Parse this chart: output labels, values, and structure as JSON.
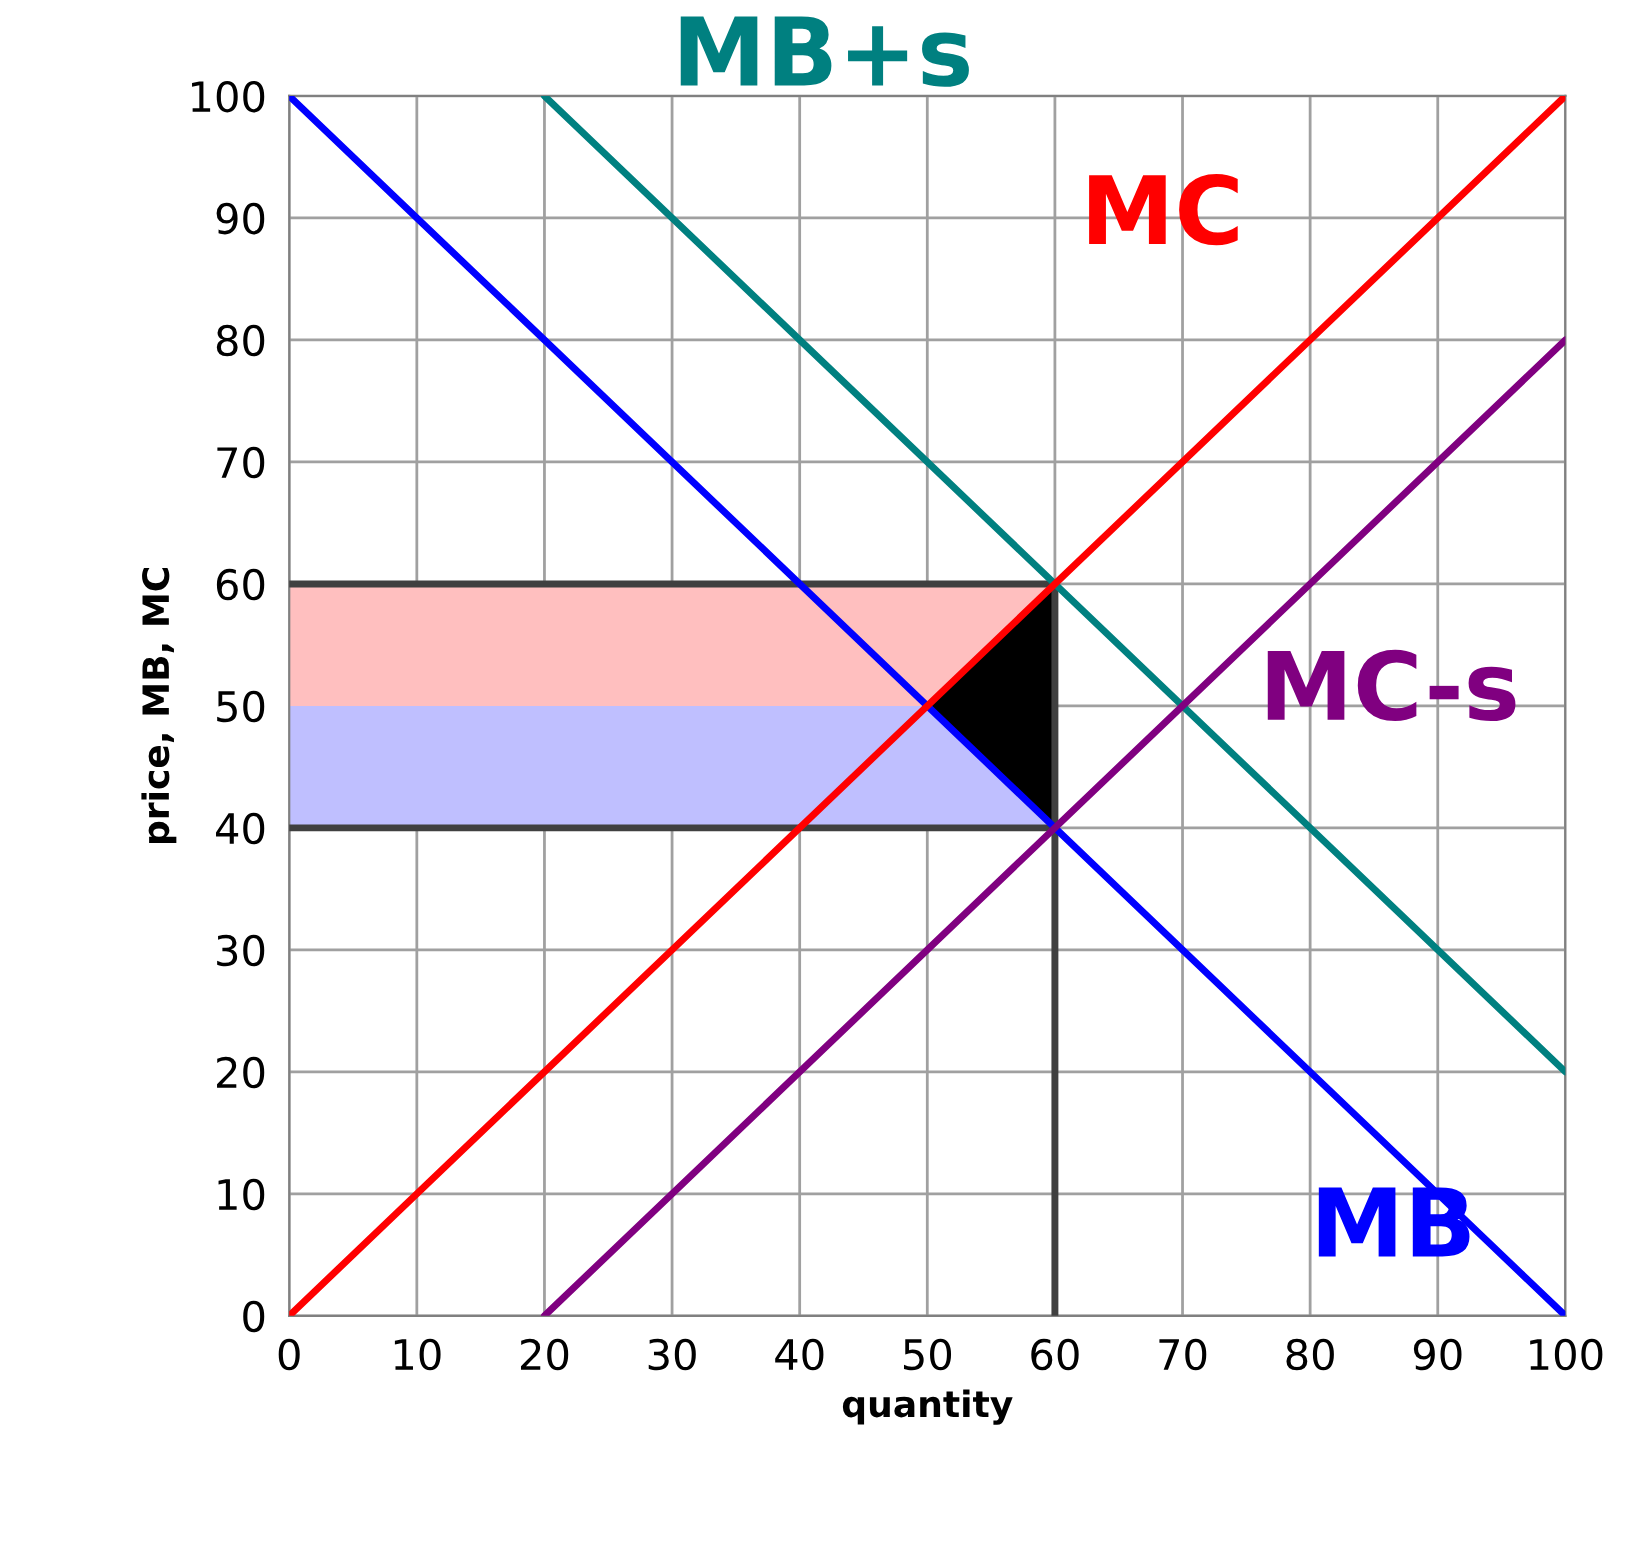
{
  "chart_data": {
    "type": "line",
    "xlabel": "quantity",
    "ylabel": "price, MB, MC",
    "xlim": [
      0,
      100
    ],
    "ylim": [
      0,
      100
    ],
    "xticks": [
      0,
      10,
      20,
      30,
      40,
      50,
      60,
      70,
      80,
      90,
      100
    ],
    "yticks": [
      0,
      10,
      20,
      30,
      40,
      50,
      60,
      70,
      80,
      90,
      100
    ],
    "grid": true,
    "legend": false,
    "series": [
      {
        "type": "area",
        "color": "#ffbfbf",
        "x": [
          0,
          60,
          60,
          0
        ],
        "values": [
          60,
          60,
          50,
          50
        ]
      },
      {
        "type": "area",
        "color": "#bfbfff",
        "x": [
          0,
          60,
          60,
          0
        ],
        "values": [
          50,
          50,
          40,
          40
        ]
      },
      {
        "type": "area",
        "color": "#000000",
        "x": [
          50,
          60,
          60
        ],
        "values": [
          50,
          60,
          40
        ]
      },
      {
        "type": "line",
        "color": "#404040",
        "x": [
          0,
          60,
          60,
          0,
          60,
          60
        ],
        "values": [
          60,
          60,
          40,
          40,
          40,
          0
        ]
      },
      {
        "name": "MB",
        "color": "#0000ff",
        "x": [
          0,
          100
        ],
        "values": [
          100,
          0
        ]
      },
      {
        "name": "MB+s",
        "color": "#008080",
        "x": [
          20,
          100
        ],
        "values": [
          100,
          20
        ]
      },
      {
        "name": "MC",
        "color": "#ff0000",
        "x": [
          0,
          100
        ],
        "values": [
          0,
          100
        ]
      },
      {
        "name": "MC-s",
        "color": "#800080",
        "x": [
          20,
          100
        ],
        "values": [
          0,
          80
        ]
      }
    ]
  }
}
